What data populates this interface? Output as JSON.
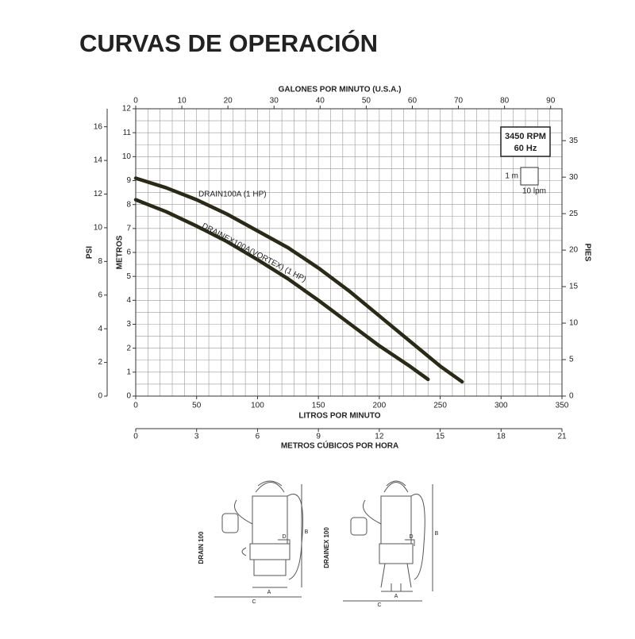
{
  "chart_data": {
    "type": "line",
    "title": "CURVAS DE OPERACIÓN",
    "x_label": "LITROS POR MINUTO",
    "y_label": "METROS",
    "xlim": [
      0,
      350
    ],
    "xticks": [
      0,
      50,
      100,
      150,
      200,
      250,
      300,
      350
    ],
    "ylim": [
      0,
      12
    ],
    "yticks": [
      0,
      1,
      2,
      3,
      4,
      5,
      6,
      7,
      8,
      9,
      10,
      11,
      12
    ],
    "grid": true,
    "minor_grid": {
      "x": 10,
      "y": 0.5
    },
    "psi_axis": {
      "label": "PSI",
      "lim": [
        0,
        17.07
      ],
      "ticks": [
        0,
        2,
        4,
        6,
        8,
        10,
        12,
        14,
        16
      ]
    },
    "feet_axis": {
      "label": "PIES",
      "lim": [
        0,
        39.37
      ],
      "ticks": [
        0,
        5,
        10,
        15,
        20,
        25,
        30,
        35
      ]
    },
    "gpm_axis": {
      "label": "GALONES POR MINUTO (U.S.A.)",
      "lim": [
        0,
        92.46
      ],
      "ticks": [
        0,
        10,
        20,
        30,
        40,
        50,
        60,
        70,
        80,
        90
      ]
    },
    "m3h_axis": {
      "label": "METROS CÚBICOS POR HORA",
      "lim": [
        0,
        21
      ],
      "ticks": [
        0,
        3,
        6,
        9,
        12,
        15,
        18,
        21
      ]
    },
    "series": [
      {
        "name": "DRAIN100A (1 HP)",
        "color": "#2b2a17",
        "x": [
          0,
          25,
          50,
          75,
          100,
          125,
          150,
          175,
          200,
          225,
          250,
          268
        ],
        "values": [
          9.1,
          8.7,
          8.2,
          7.6,
          6.9,
          6.2,
          5.35,
          4.4,
          3.35,
          2.3,
          1.25,
          0.6
        ]
      },
      {
        "name": "DRAINEX100A(VORTEX) (1 HP)",
        "color": "#2b2a17",
        "x": [
          0,
          25,
          50,
          75,
          100,
          125,
          150,
          175,
          200,
          225,
          240
        ],
        "values": [
          8.2,
          7.7,
          7.1,
          6.45,
          5.7,
          4.9,
          4.0,
          3.05,
          2.1,
          1.25,
          0.7
        ]
      }
    ],
    "annotations": {
      "rpm": "3450 RPM",
      "hz": "60 Hz",
      "scale_y": "1 m",
      "scale_x": "10 lpm"
    }
  },
  "diagrams": [
    {
      "label": "DRAIN 100",
      "a": "A",
      "b": "B",
      "c": "C",
      "d": "D"
    },
    {
      "label": "DRAINEX 100",
      "a": "A",
      "b": "B",
      "c": "C",
      "d": "D"
    }
  ]
}
